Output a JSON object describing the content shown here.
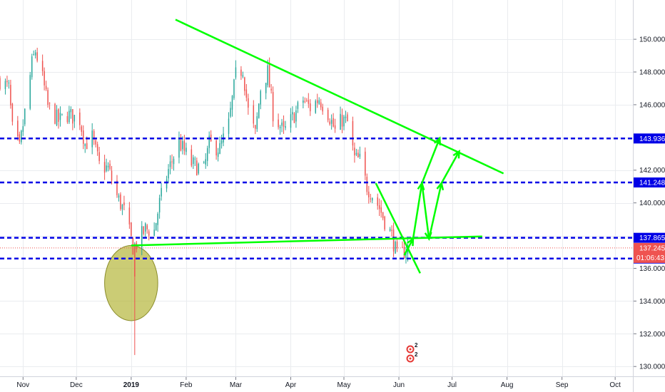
{
  "chart_data": {
    "type": "candlestick",
    "y_axis": {
      "range": [
        129.4,
        152.4
      ],
      "ticks": [
        {
          "value": 130,
          "label": "130.000"
        },
        {
          "value": 132,
          "label": "132.000"
        },
        {
          "value": 134,
          "label": "134.000"
        },
        {
          "value": 136,
          "label": "136.000"
        },
        {
          "value": 138,
          "label": "138.000"
        },
        {
          "value": 140,
          "label": "140.000"
        },
        {
          "value": 142,
          "label": "142.000"
        },
        {
          "value": 144,
          "label": "144.000"
        },
        {
          "value": 146,
          "label": "146.000"
        },
        {
          "value": 148,
          "label": "148.000"
        },
        {
          "value": 150,
          "label": "150.000"
        }
      ]
    },
    "x_axis": {
      "start": "2018-10-19",
      "end": "2019-10-11",
      "ticks": [
        {
          "date": "2018-11-01",
          "label": "Nov",
          "bold": false
        },
        {
          "date": "2018-12-01",
          "label": "Dec",
          "bold": false
        },
        {
          "date": "2019-01-01",
          "label": "2019",
          "bold": true
        },
        {
          "date": "2019-02-01",
          "label": "Feb",
          "bold": false
        },
        {
          "date": "2019-03-01",
          "label": "Mar",
          "bold": false
        },
        {
          "date": "2019-04-01",
          "label": "Apr",
          "bold": false
        },
        {
          "date": "2019-05-01",
          "label": "May",
          "bold": false
        },
        {
          "date": "2019-06-01",
          "label": "Jun",
          "bold": false
        },
        {
          "date": "2019-07-01",
          "label": "Jul",
          "bold": false
        },
        {
          "date": "2019-08-01",
          "label": "Aug",
          "bold": false
        },
        {
          "date": "2019-09-01",
          "label": "Sep",
          "bold": false
        },
        {
          "date": "2019-10-01",
          "label": "Oct",
          "bold": false
        }
      ]
    },
    "price_path": [
      [
        "2018-10-19",
        147.5
      ],
      [
        "2018-10-24",
        147.0
      ],
      [
        "2018-10-26",
        144.5
      ],
      [
        "2018-10-30",
        143.3
      ],
      [
        "2018-11-02",
        145.5
      ],
      [
        "2018-11-06",
        148.5
      ],
      [
        "2018-11-08",
        149.3
      ],
      [
        "2018-11-12",
        147.6
      ],
      [
        "2018-11-15",
        145.9
      ],
      [
        "2018-11-21",
        145.0
      ],
      [
        "2018-11-26",
        145.4
      ],
      [
        "2018-12-03",
        145.1
      ],
      [
        "2018-12-06",
        143.6
      ],
      [
        "2018-12-10",
        144.0
      ],
      [
        "2018-12-14",
        142.3
      ],
      [
        "2018-12-19",
        142.1
      ],
      [
        "2018-12-24",
        140.4
      ],
      [
        "2018-12-28",
        139.5
      ],
      [
        "2019-01-02",
        137.3
      ],
      [
        "2019-01-04",
        137.5
      ],
      [
        "2019-01-09",
        138.4
      ],
      [
        "2019-01-14",
        138.3
      ],
      [
        "2019-01-17",
        140.0
      ],
      [
        "2019-01-22",
        142.0
      ],
      [
        "2019-01-28",
        143.7
      ],
      [
        "2019-02-04",
        142.4
      ],
      [
        "2019-02-11",
        142.0
      ],
      [
        "2019-02-14",
        143.6
      ],
      [
        "2019-02-20",
        143.3
      ],
      [
        "2019-02-25",
        144.8
      ],
      [
        "2019-03-01",
        147.8
      ],
      [
        "2019-03-05",
        148.2
      ],
      [
        "2019-03-08",
        145.6
      ],
      [
        "2019-03-12",
        144.2
      ],
      [
        "2019-03-15",
        147.0
      ],
      [
        "2019-03-19",
        148.0
      ],
      [
        "2019-03-22",
        145.5
      ],
      [
        "2019-03-28",
        144.3
      ],
      [
        "2019-04-02",
        145.2
      ],
      [
        "2019-04-08",
        146.3
      ],
      [
        "2019-04-12",
        145.8
      ],
      [
        "2019-04-17",
        146.4
      ],
      [
        "2019-04-22",
        145.5
      ],
      [
        "2019-04-26",
        144.4
      ],
      [
        "2019-04-30",
        145.1
      ],
      [
        "2019-05-03",
        144.9
      ],
      [
        "2019-05-07",
        142.7
      ],
      [
        "2019-05-10",
        142.6
      ],
      [
        "2019-05-14",
        141.0
      ],
      [
        "2019-05-17",
        140.5
      ],
      [
        "2019-05-21",
        139.7
      ],
      [
        "2019-05-24",
        138.9
      ],
      [
        "2019-05-28",
        138.0
      ],
      [
        "2019-05-31",
        136.7
      ],
      [
        "2019-06-03",
        136.9
      ],
      [
        "2019-06-05",
        137.2
      ],
      [
        "2019-06-06",
        137.245
      ]
    ],
    "levels": [
      {
        "price": 143.936,
        "label": "143.936",
        "color": "#0000e6"
      },
      {
        "price": 141.248,
        "label": "141.248",
        "color": "#0000e6"
      },
      {
        "price": 137.865,
        "label": "137.865",
        "color": "#0000e6"
      },
      {
        "price": 136.599,
        "label": "136.599",
        "color": "#0000e6"
      }
    ],
    "last_price": {
      "price": 137.245,
      "label": "137.245",
      "countdown": "01:06:43",
      "color": "#ef5350"
    },
    "trendlines": [
      {
        "from": [
          "2019-01-26",
          151.2
        ],
        "to": [
          "2019-07-30",
          141.8
        ]
      },
      {
        "from": [
          "2019-01-01",
          137.4
        ],
        "to": [
          "2019-07-18",
          137.95
        ]
      },
      {
        "from": [
          "2019-05-19",
          141.2
        ],
        "to": [
          "2019-06-13",
          135.7
        ]
      }
    ],
    "projection_arrows": [
      [
        [
          "2019-06-04",
          136.8
        ],
        [
          "2019-06-09",
          137.8
        ]
      ],
      [
        [
          "2019-06-09",
          137.8
        ],
        [
          "2019-06-14",
          141.2
        ]
      ],
      [
        [
          "2019-06-14",
          141.2
        ],
        [
          "2019-06-18",
          137.8
        ]
      ],
      [
        [
          "2019-06-18",
          137.8
        ],
        [
          "2019-06-25",
          141.2
        ]
      ],
      [
        [
          "2019-06-25",
          141.2
        ],
        [
          "2019-07-05",
          143.15
        ]
      ],
      [
        [
          "2019-06-14",
          141.2
        ],
        [
          "2019-06-24",
          143.95
        ]
      ]
    ],
    "highlight_ellipse": {
      "center": [
        "2019-01-01",
        135.1
      ],
      "date_span_days": 15,
      "price_radius": 2.3,
      "color": "#b5b73a"
    },
    "colors": {
      "up": "#26a69a",
      "down": "#ef5350",
      "drawing": "#00ff00",
      "level": "#0000e6",
      "grid": "#eaecef"
    }
  },
  "events": [
    {
      "date": "2019-06-01",
      "label": "2",
      "color": "#e53935",
      "slot": 1
    },
    {
      "date": "2019-06-01",
      "label": "2",
      "color": "#e53935",
      "slot": 2
    }
  ]
}
